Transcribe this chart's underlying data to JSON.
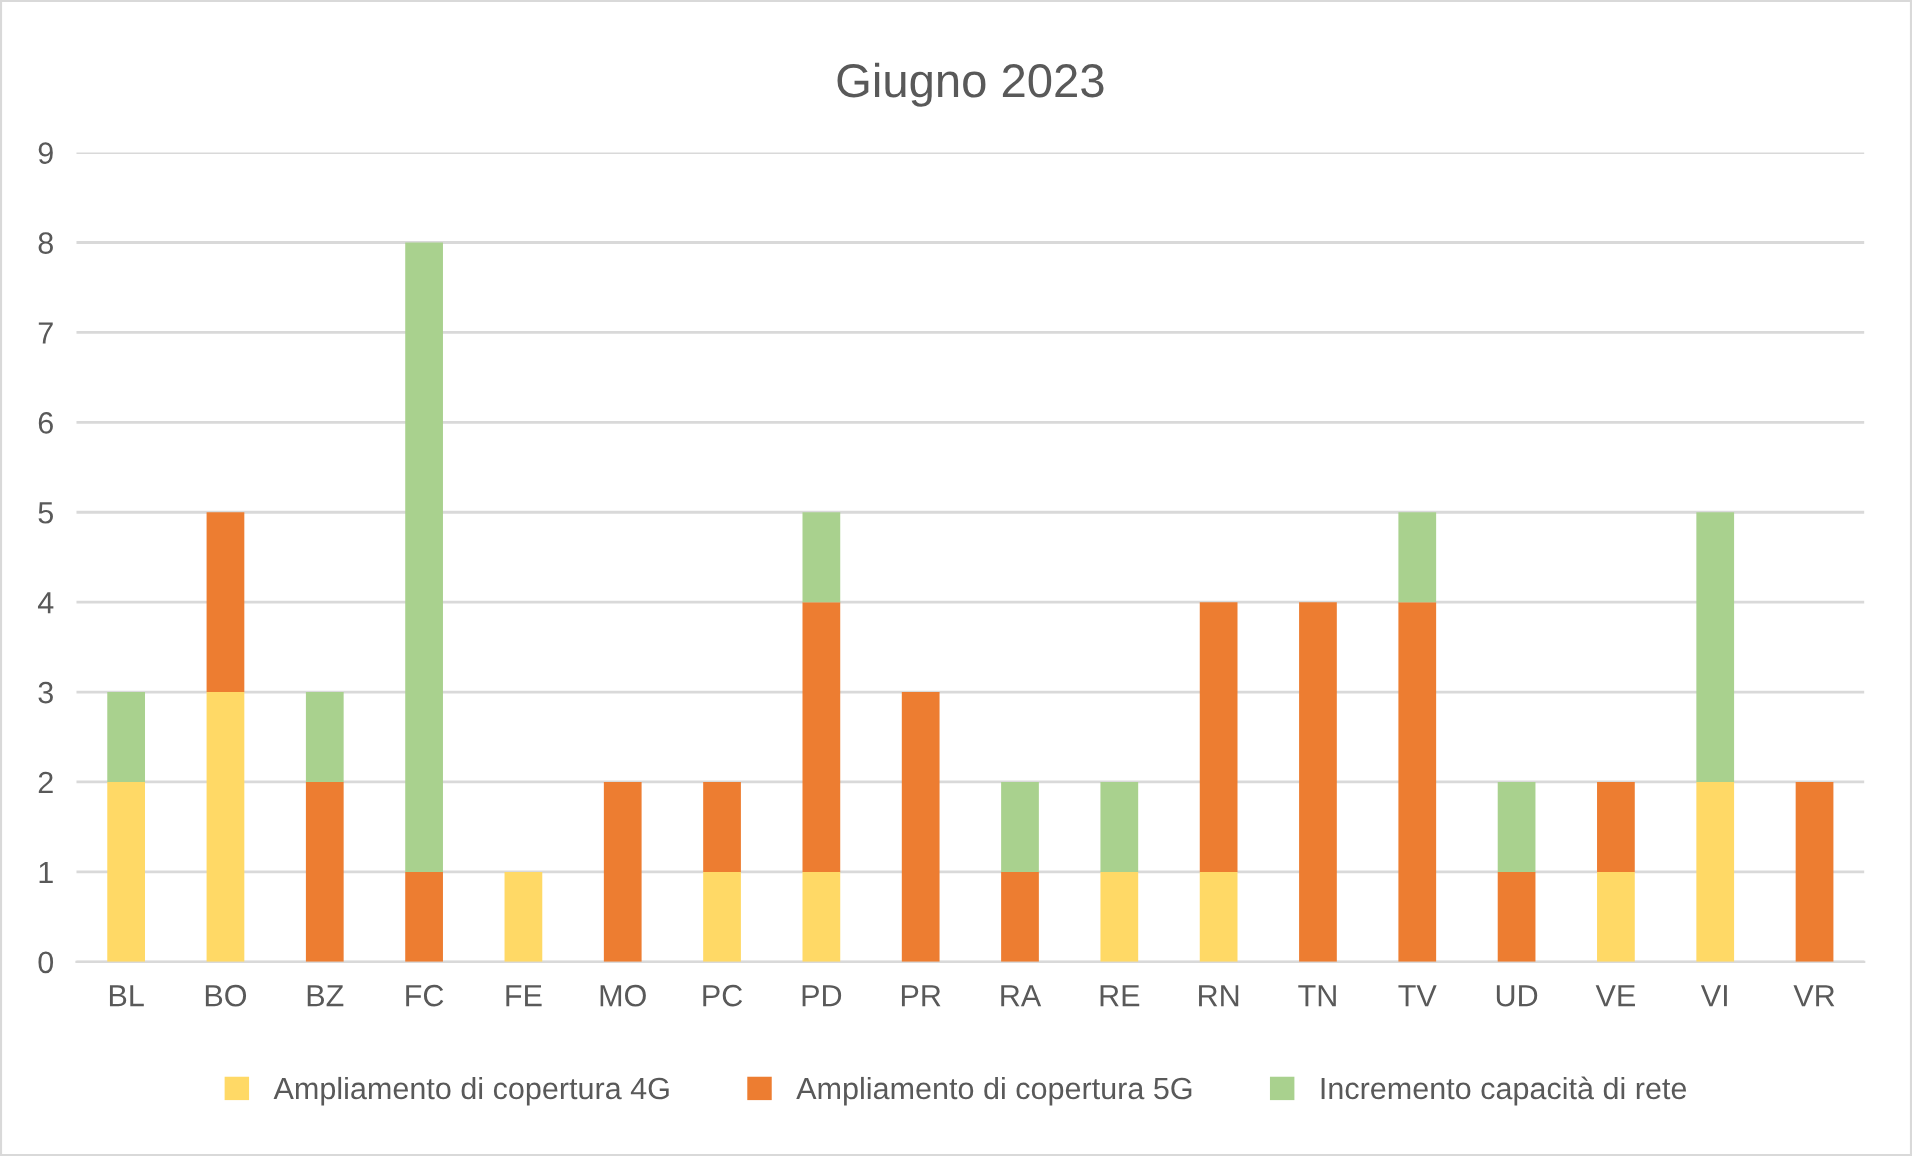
{
  "chart_data": {
    "type": "bar",
    "title": "Giugno 2023",
    "stacked": true,
    "categories": [
      "BL",
      "BO",
      "BZ",
      "FC",
      "FE",
      "MO",
      "PC",
      "PD",
      "PR",
      "RA",
      "RE",
      "RN",
      "TN",
      "TV",
      "UD",
      "VE",
      "VI",
      "VR"
    ],
    "series": [
      {
        "name": "Ampliamento di copertura 4G",
        "color": "#ffd966",
        "values": [
          2,
          3,
          0,
          0,
          1,
          0,
          1,
          1,
          0,
          0,
          1,
          1,
          0,
          0,
          0,
          1,
          2,
          0
        ]
      },
      {
        "name": "Ampliamento di copertura 5G",
        "color": "#ed7d31",
        "values": [
          0,
          2,
          2,
          1,
          0,
          2,
          1,
          3,
          3,
          1,
          0,
          3,
          4,
          4,
          1,
          1,
          0,
          2
        ]
      },
      {
        "name": "Incremento capacità di rete",
        "color": "#a9d18e",
        "values": [
          1,
          0,
          1,
          7,
          0,
          0,
          0,
          1,
          0,
          1,
          1,
          0,
          0,
          1,
          1,
          0,
          3,
          0
        ]
      }
    ],
    "ylim": [
      0,
      9
    ],
    "yticks": [
      0,
      1,
      2,
      3,
      4,
      5,
      6,
      7,
      8,
      9
    ],
    "grid": "y",
    "legend": "bottom"
  }
}
